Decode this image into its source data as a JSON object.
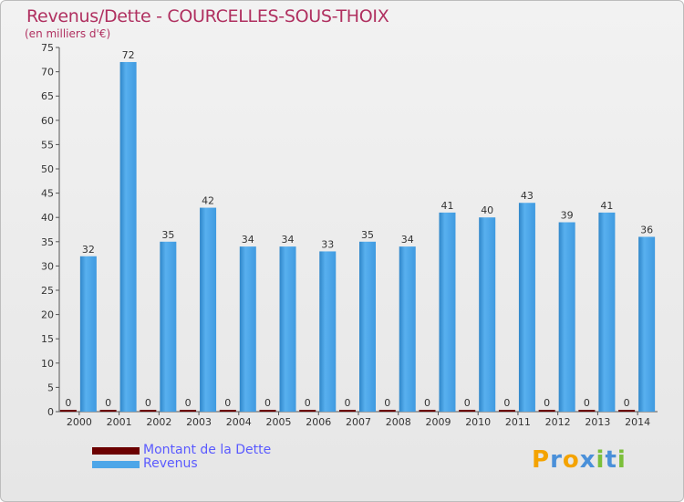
{
  "header": {
    "title": "Revenus/Dette - COURCELLES-SOUS-THOIX",
    "subtitle": "(en milliers d'€)"
  },
  "logo": {
    "text": "Proxiti",
    "letters": [
      {
        "ch": "P",
        "color": "#f4a300"
      },
      {
        "ch": "r",
        "color": "#4a90d9"
      },
      {
        "ch": "o",
        "color": "#f4a300"
      },
      {
        "ch": "x",
        "color": "#4a90d9"
      },
      {
        "ch": "i",
        "color": "#7bbf3a"
      },
      {
        "ch": "t",
        "color": "#4a90d9"
      },
      {
        "ch": "i",
        "color": "#7bbf3a"
      }
    ]
  },
  "colors": {
    "revenus": "#4da6e8",
    "revenus_dark": "#2f86c9",
    "dette": "#6b0000",
    "title": "#b03060"
  },
  "chart_data": {
    "type": "bar",
    "categories": [
      "2000",
      "2001",
      "2002",
      "2003",
      "2004",
      "2005",
      "2006",
      "2007",
      "2008",
      "2009",
      "2010",
      "2011",
      "2012",
      "2013",
      "2014"
    ],
    "series": [
      {
        "name": "Montant de la Dette",
        "values": [
          0,
          0,
          0,
          0,
          0,
          0,
          0,
          0,
          0,
          0,
          0,
          0,
          0,
          0,
          0
        ]
      },
      {
        "name": "Revenus",
        "values": [
          32,
          72,
          35,
          42,
          34,
          34,
          33,
          35,
          34,
          41,
          40,
          43,
          39,
          41,
          36
        ]
      }
    ],
    "ylim": [
      0,
      75
    ],
    "yticks": [
      0,
      5,
      10,
      15,
      20,
      25,
      30,
      35,
      40,
      45,
      50,
      55,
      60,
      65,
      70,
      75
    ],
    "grid": false,
    "legend": "bottom-left"
  }
}
